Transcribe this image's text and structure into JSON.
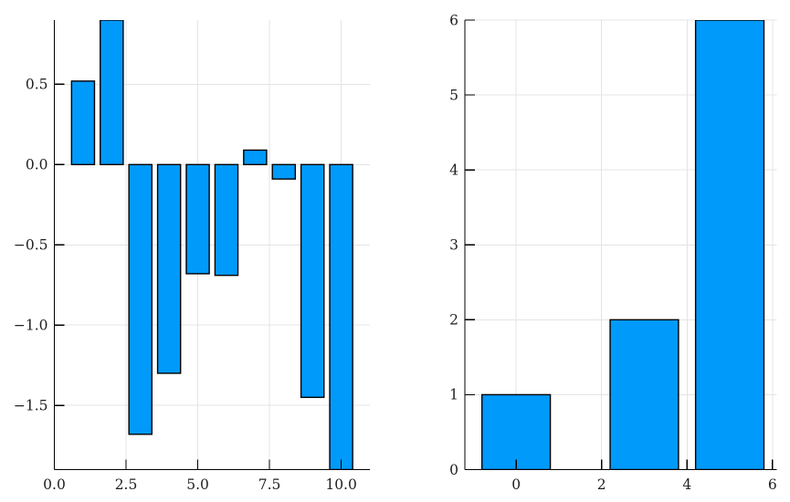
{
  "figure": {
    "background": "#ffffff",
    "title": "",
    "panels": 2
  },
  "style": {
    "bar_fill": "#009AFA",
    "bar_stroke": "#000000",
    "grid_color": "#E4E4E4",
    "axis_color": "#000000",
    "tick_label_color": "#1F1F1F"
  },
  "chart_data": [
    {
      "id": "left-bar-chart",
      "type": "bar",
      "orientation": "vertical",
      "x": [
        1,
        2,
        3,
        4,
        5,
        6,
        7,
        8,
        9,
        10
      ],
      "values": [
        0.52,
        0.9,
        -1.68,
        -1.3,
        -0.68,
        -0.69,
        0.09,
        -0.09,
        -1.45,
        -1.9
      ],
      "bar_width": 0.8,
      "baseline": 0,
      "xlim": [
        0,
        11
      ],
      "ylim": [
        -1.9,
        0.9
      ],
      "xticks": [
        0,
        2.5,
        5,
        7.5,
        10
      ],
      "xtick_labels": [
        "0.0",
        "2.5",
        "5.0",
        "7.5",
        "10.0"
      ],
      "yticks": [
        0.5,
        0,
        -0.5,
        -1,
        -1.5
      ],
      "ytick_labels": [
        "0.5",
        "0.0",
        "−0.5",
        "−1.0",
        "−1.5"
      ],
      "grid": true,
      "legend": "none",
      "title": "",
      "xlabel": "",
      "ylabel": ""
    },
    {
      "id": "right-bar-chart",
      "type": "bar",
      "orientation": "vertical",
      "x": [
        0,
        3,
        5
      ],
      "values": [
        1,
        2,
        6
      ],
      "bar_width": 1.6,
      "baseline": 0,
      "xlim": [
        -1.2,
        6.1
      ],
      "ylim": [
        0,
        6
      ],
      "xticks": [
        0,
        2,
        4,
        6
      ],
      "xtick_labels": [
        "0",
        "2",
        "4",
        "6"
      ],
      "yticks": [
        0,
        1,
        2,
        3,
        4,
        5,
        6
      ],
      "ytick_labels": [
        "0",
        "1",
        "2",
        "3",
        "4",
        "5",
        "6"
      ],
      "grid": true,
      "legend": "none",
      "title": "",
      "xlabel": "",
      "ylabel": ""
    }
  ]
}
